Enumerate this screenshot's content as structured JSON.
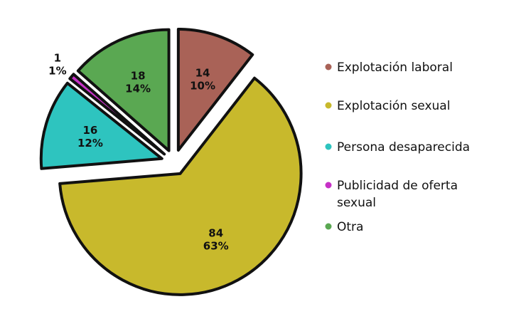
{
  "chart_data": {
    "type": "pie",
    "title": "",
    "exploded": true,
    "legend_position": "right",
    "slices": [
      {
        "label": "Explotación laboral",
        "value": 14,
        "percent": "10%",
        "color": "#a96257"
      },
      {
        "label": "Explotación sexual",
        "value": 84,
        "percent": "63%",
        "color": "#c8b92c"
      },
      {
        "label": "Persona desaparecida",
        "value": 16,
        "percent": "12%",
        "color": "#2ec4bf"
      },
      {
        "label": "Publicidad de oferta sexual",
        "value": 1,
        "percent": "1%",
        "color": "#c631c6"
      },
      {
        "label": "Otra",
        "value": 18,
        "percent": "14%",
        "color": "#5aa852"
      }
    ],
    "legend": [
      {
        "lines": [
          "Explotación laboral"
        ],
        "color": "#a96257"
      },
      {
        "lines": [
          "Explotación sexual"
        ],
        "color": "#c8b92c"
      },
      {
        "lines": [
          "Persona desaparecida"
        ],
        "color": "#2ec4bf"
      },
      {
        "lines": [
          "Publicidad de oferta",
          "sexual"
        ],
        "color": "#c631c6"
      },
      {
        "lines": [
          "Otra"
        ],
        "color": "#5aa852"
      }
    ]
  }
}
